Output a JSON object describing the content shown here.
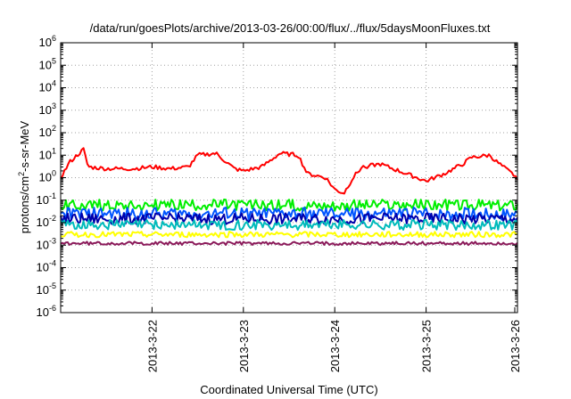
{
  "chart_data": {
    "type": "line",
    "title": "/data/run/goesPlots/archive/2013-03-26/00:00/flux/../flux/5daysMoonFluxes.txt",
    "xlabel": "Coordinated Universal Time (UTC)",
    "ylabel_prefix": "protons/cm",
    "ylabel_exp": "2",
    "ylabel_suffix": "-s-sr-MeV",
    "yscale": "log",
    "ylim": [
      1e-06,
      1000000.0
    ],
    "yticks": [
      {
        "base": "10",
        "exp": "6"
      },
      {
        "base": "10",
        "exp": "5"
      },
      {
        "base": "10",
        "exp": "4"
      },
      {
        "base": "10",
        "exp": "3"
      },
      {
        "base": "10",
        "exp": "2"
      },
      {
        "base": "10",
        "exp": "1"
      },
      {
        "base": "10",
        "exp": "0"
      },
      {
        "base": "10",
        "exp": "-1"
      },
      {
        "base": "10",
        "exp": "-2"
      },
      {
        "base": "10",
        "exp": "-3"
      },
      {
        "base": "10",
        "exp": "-4"
      },
      {
        "base": "10",
        "exp": "-5"
      },
      {
        "base": "10",
        "exp": "-6"
      }
    ],
    "xlim": [
      "2013-03-21 00:00",
      "2013-03-26 00:00"
    ],
    "xticks": [
      "2013-3-22",
      "2013-3-23",
      "2013-3-24",
      "2013-3-25",
      "2013-3-26"
    ],
    "grid": true,
    "series": [
      {
        "color": "#ff0000",
        "x": [
          0.0,
          0.1,
          0.25,
          0.3,
          0.5,
          0.8,
          1.0,
          1.2,
          1.4,
          1.5,
          1.7,
          1.9,
          2.0,
          2.2,
          2.4,
          2.6,
          2.7,
          2.9,
          3.0,
          3.1,
          3.2,
          3.3,
          3.5,
          3.7,
          3.9,
          4.0,
          4.2,
          4.4,
          4.5,
          4.7,
          4.75,
          4.9,
          5.0
        ],
        "y": [
          1.0,
          5.0,
          18,
          3.0,
          2.5,
          2.5,
          3.0,
          2.5,
          3.0,
          10,
          12,
          2.5,
          2.0,
          3.0,
          12,
          10,
          1.5,
          1.0,
          0.3,
          0.2,
          1.0,
          3.0,
          4.0,
          2.0,
          1.0,
          0.7,
          1.5,
          4.0,
          8.0,
          10,
          6.0,
          2.0,
          1.0
        ]
      },
      {
        "color": "#00ee00",
        "level": 0.06,
        "spread": 0.5
      },
      {
        "color": "#0055ff",
        "level": 0.025,
        "spread": 0.55
      },
      {
        "color": "#0000aa",
        "level": 0.015,
        "spread": 0.5
      },
      {
        "color": "#00bbbb",
        "level": 0.008,
        "spread": 0.45
      },
      {
        "color": "#ffff00",
        "level": 0.003,
        "spread": 0.25
      },
      {
        "color": "#8b1a5a",
        "level": 0.0012,
        "spread": 0.15
      }
    ]
  }
}
